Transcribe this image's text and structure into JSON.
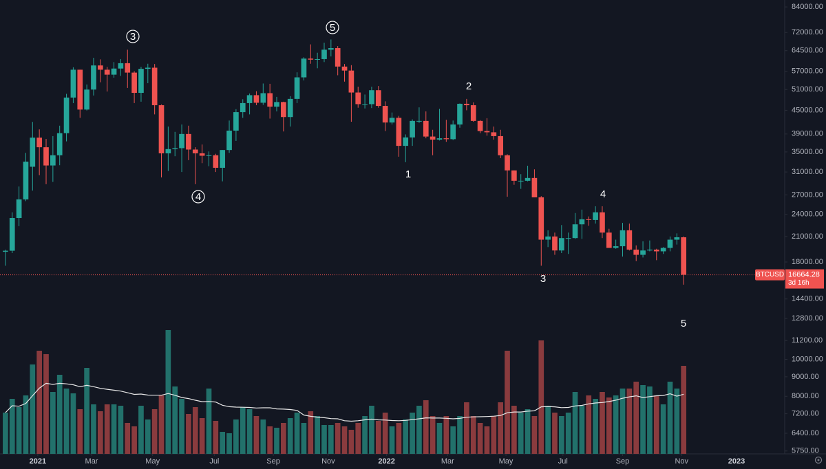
{
  "chart_data": {
    "type": "candlestick",
    "symbol": "BTCUSD",
    "last_price": 16664.28,
    "countdown": "3d 16h",
    "log_scale": true,
    "up_color": "#26a69a",
    "down_color": "#ef5350",
    "volume_up_color": "#22716b",
    "volume_down_color": "#8a3b3e",
    "ylim": [
      5650,
      87600
    ],
    "yticks": [
      {
        "value": 84000,
        "label": "84000.00"
      },
      {
        "value": 72000,
        "label": "72000.00"
      },
      {
        "value": 64500,
        "label": "64500.00"
      },
      {
        "value": 57000,
        "label": "57000.00"
      },
      {
        "value": 51000,
        "label": "51000.00"
      },
      {
        "value": 45000,
        "label": "45000.00"
      },
      {
        "value": 39000,
        "label": "39000.00"
      },
      {
        "value": 35000,
        "label": "35000.00"
      },
      {
        "value": 31000,
        "label": "31000.00"
      },
      {
        "value": 27000,
        "label": "27000.00"
      },
      {
        "value": 24000,
        "label": "24000.00"
      },
      {
        "value": 21000,
        "label": "21000.00"
      },
      {
        "value": 18000,
        "label": "18000.00"
      },
      {
        "value": 14400,
        "label": "14400.00"
      },
      {
        "value": 12800,
        "label": "12800.00"
      },
      {
        "value": 11200,
        "label": "11200.00"
      },
      {
        "value": 10000,
        "label": "10000.00"
      },
      {
        "value": 9000,
        "label": "9000.00"
      },
      {
        "value": 8000,
        "label": "8000.00"
      },
      {
        "value": 7200,
        "label": "7200.00"
      },
      {
        "value": 6400,
        "label": "6400.00"
      },
      {
        "value": 5750,
        "label": "5750.00"
      }
    ],
    "xlim": [
      -0.8,
      114.9
    ],
    "xticks": [
      {
        "value": 4.77,
        "label": "2021"
      },
      {
        "value": 12.7,
        "label": "Mar"
      },
      {
        "value": 21.7,
        "label": "May"
      },
      {
        "value": 30.8,
        "label": "Jul"
      },
      {
        "value": 39.5,
        "label": "Sep"
      },
      {
        "value": 47.6,
        "label": "Nov"
      },
      {
        "value": 56.2,
        "label": "2022"
      },
      {
        "value": 65.2,
        "label": "Mar"
      },
      {
        "value": 73.8,
        "label": "May"
      },
      {
        "value": 82.2,
        "label": "Jul"
      },
      {
        "value": 91.0,
        "label": "Sep"
      },
      {
        "value": 99.7,
        "label": "Nov"
      },
      {
        "value": 107.8,
        "label": "2023"
      }
    ],
    "ohlc": [
      [
        19150,
        19400,
        17600,
        19270
      ],
      [
        19270,
        24300,
        19000,
        23480
      ],
      [
        23480,
        28400,
        22350,
        26270
      ],
      [
        26270,
        34800,
        26000,
        33000
      ],
      [
        32000,
        41950,
        27700,
        38150
      ],
      [
        38150,
        40100,
        30400,
        36000
      ],
      [
        36000,
        37850,
        28800,
        32250
      ],
      [
        32250,
        38500,
        29200,
        34300
      ],
      [
        34300,
        41000,
        32300,
        39200
      ],
      [
        39200,
        49700,
        37300,
        48600
      ],
      [
        48600,
        58350,
        47000,
        57500
      ],
      [
        57500,
        57500,
        43000,
        45200
      ],
      [
        45200,
        52600,
        44950,
        51000
      ],
      [
        51000,
        61800,
        49200,
        59000
      ],
      [
        59000,
        61200,
        53300,
        57500
      ],
      [
        57500,
        58500,
        50400,
        55800
      ],
      [
        55800,
        60200,
        54800,
        57900
      ],
      [
        57900,
        61300,
        55400,
        59800
      ],
      [
        59800,
        64900,
        51500,
        56500
      ],
      [
        56500,
        57000,
        47000,
        50000
      ],
      [
        50000,
        58500,
        47400,
        57800
      ],
      [
        57800,
        59600,
        53000,
        58200
      ],
      [
        58200,
        59500,
        43900,
        46400
      ],
      [
        46400,
        46600,
        30000,
        34700
      ],
      [
        34700,
        40800,
        31200,
        35600
      ],
      [
        35600,
        39500,
        34100,
        35800
      ],
      [
        35800,
        41300,
        31000,
        39000
      ],
      [
        39000,
        41000,
        33300,
        35500
      ],
      [
        35500,
        36000,
        28800,
        34700
      ],
      [
        34700,
        36600,
        32700,
        34200
      ],
      [
        34200,
        35100,
        32100,
        34300
      ],
      [
        34300,
        34600,
        31000,
        31800
      ],
      [
        31800,
        35400,
        29300,
        35400
      ],
      [
        35400,
        42300,
        34800,
        39800
      ],
      [
        39800,
        45300,
        37400,
        44500
      ],
      [
        44500,
        48100,
        43000,
        47000
      ],
      [
        47000,
        49800,
        43900,
        49300
      ],
      [
        49300,
        50500,
        46400,
        47100
      ],
      [
        47100,
        52900,
        46500,
        49900
      ],
      [
        49900,
        52800,
        42800,
        46000
      ],
      [
        46000,
        48800,
        44700,
        47300
      ],
      [
        47300,
        47400,
        39600,
        43200
      ],
      [
        43200,
        49000,
        40800,
        48200
      ],
      [
        48200,
        56600,
        47000,
        54900
      ],
      [
        54900,
        62000,
        53900,
        61500
      ],
      [
        61500,
        67000,
        59600,
        61100
      ],
      [
        61100,
        63700,
        58000,
        61300
      ],
      [
        61300,
        67700,
        60200,
        64900
      ],
      [
        64900,
        69000,
        62300,
        65500
      ],
      [
        65500,
        66300,
        55600,
        58600
      ],
      [
        58600,
        59500,
        53500,
        57200
      ],
      [
        57200,
        59100,
        42000,
        50100
      ],
      [
        50100,
        51900,
        45700,
        46700
      ],
      [
        46700,
        49500,
        45500,
        46700
      ],
      [
        46700,
        51900,
        45600,
        50800
      ],
      [
        50800,
        52100,
        45700,
        46200
      ],
      [
        46200,
        47500,
        39700,
        41800
      ],
      [
        41800,
        44400,
        41300,
        43000
      ],
      [
        43000,
        43500,
        34000,
        36300
      ],
      [
        36300,
        38900,
        32900,
        38200
      ],
      [
        38200,
        42600,
        36300,
        42200
      ],
      [
        42200,
        45800,
        41700,
        42200
      ],
      [
        42200,
        44700,
        38000,
        38400
      ],
      [
        38400,
        40000,
        34300,
        37700
      ],
      [
        37700,
        45400,
        37500,
        38000
      ],
      [
        38000,
        42500,
        37200,
        37800
      ],
      [
        37800,
        42300,
        37600,
        41300
      ],
      [
        41300,
        46900,
        40500,
        46800
      ],
      [
        46800,
        48200,
        45000,
        46400
      ],
      [
        46400,
        47200,
        42000,
        42200
      ],
      [
        42200,
        42400,
        39200,
        39700
      ],
      [
        39700,
        42900,
        38600,
        39400
      ],
      [
        39400,
        40800,
        37700,
        38500
      ],
      [
        38500,
        40000,
        33700,
        34300
      ],
      [
        34300,
        34500,
        26700,
        31300
      ],
      [
        31300,
        31300,
        28700,
        29400
      ],
      [
        29400,
        30600,
        28000,
        29400
      ],
      [
        29400,
        32200,
        29300,
        29900
      ],
      [
        29900,
        31500,
        26600,
        26600
      ],
      [
        26600,
        26800,
        17600,
        20600
      ],
      [
        20600,
        21800,
        19700,
        21000
      ],
      [
        21000,
        21500,
        18800,
        19300
      ],
      [
        19300,
        22500,
        19000,
        20800
      ],
      [
        20800,
        21500,
        18900,
        20800
      ],
      [
        20800,
        24200,
        20700,
        22600
      ],
      [
        22600,
        24700,
        20700,
        23300
      ],
      [
        23300,
        23700,
        22400,
        23200
      ],
      [
        23200,
        25200,
        22700,
        24300
      ],
      [
        24300,
        25200,
        20800,
        21500
      ],
      [
        21500,
        22000,
        19600,
        19600
      ],
      [
        19600,
        20600,
        19500,
        19800
      ],
      [
        19800,
        22800,
        18600,
        21800
      ],
      [
        21800,
        22700,
        19300,
        19400
      ],
      [
        19400,
        19900,
        18100,
        18800
      ],
      [
        18800,
        20400,
        18500,
        19300
      ],
      [
        19300,
        20500,
        19200,
        19400
      ],
      [
        19400,
        19500,
        18200,
        19200
      ],
      [
        19200,
        19700,
        18900,
        19600
      ],
      [
        19600,
        21000,
        19200,
        20600
      ],
      [
        20600,
        21400,
        20000,
        20900
      ],
      [
        20900,
        21000,
        15700,
        16664.28
      ]
    ],
    "volume_ylim": [
      0,
      200
    ],
    "volume": [
      60,
      80,
      68,
      85,
      130,
      150,
      145,
      90,
      115,
      95,
      88,
      65,
      125,
      72,
      62,
      72,
      72,
      70,
      45,
      40,
      70,
      50,
      65,
      85,
      180,
      98,
      80,
      58,
      68,
      52,
      95,
      48,
      32,
      30,
      50,
      68,
      65,
      55,
      50,
      40,
      38,
      45,
      52,
      60,
      45,
      62,
      55,
      42,
      42,
      45,
      40,
      35,
      45,
      55,
      70,
      48,
      60,
      40,
      45,
      50,
      60,
      70,
      78,
      55,
      45,
      55,
      40,
      55,
      75,
      55,
      45,
      40,
      55,
      75,
      150,
      70,
      60,
      65,
      55,
      165,
      70,
      60,
      55,
      60,
      90,
      70,
      85,
      80,
      90,
      82,
      85,
      95,
      95,
      105,
      100,
      98,
      85,
      72,
      105,
      95,
      128
    ],
    "annotations": [
      "3",
      "4",
      "5",
      "2",
      "1",
      "4",
      "3",
      "5"
    ]
  }
}
